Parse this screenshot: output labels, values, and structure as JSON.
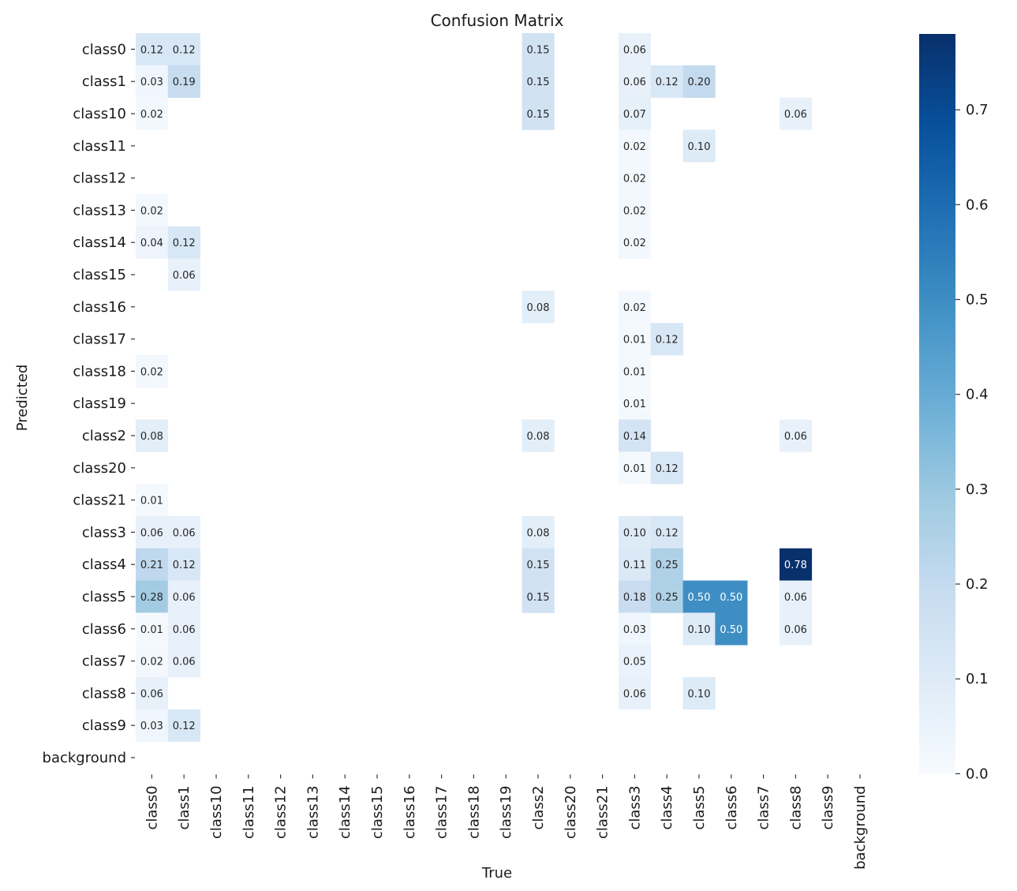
{
  "chart_data": {
    "type": "heatmap",
    "title": "Confusion Matrix",
    "xlabel": "True",
    "ylabel": "Predicted",
    "x_categories": [
      "class0",
      "class1",
      "class10",
      "class11",
      "class12",
      "class13",
      "class14",
      "class15",
      "class16",
      "class17",
      "class18",
      "class19",
      "class2",
      "class20",
      "class21",
      "class3",
      "class4",
      "class5",
      "class6",
      "class7",
      "class8",
      "class9",
      "background"
    ],
    "y_categories": [
      "class0",
      "class1",
      "class10",
      "class11",
      "class12",
      "class13",
      "class14",
      "class15",
      "class16",
      "class17",
      "class18",
      "class19",
      "class2",
      "class20",
      "class21",
      "class3",
      "class4",
      "class5",
      "class6",
      "class7",
      "class8",
      "class9",
      "background"
    ],
    "cells": [
      {
        "y": "class0",
        "x": "class0",
        "v": 0.12
      },
      {
        "y": "class0",
        "x": "class1",
        "v": 0.12
      },
      {
        "y": "class0",
        "x": "class2",
        "v": 0.15
      },
      {
        "y": "class0",
        "x": "class3",
        "v": 0.06
      },
      {
        "y": "class1",
        "x": "class0",
        "v": 0.03
      },
      {
        "y": "class1",
        "x": "class1",
        "v": 0.19
      },
      {
        "y": "class1",
        "x": "class2",
        "v": 0.15
      },
      {
        "y": "class1",
        "x": "class3",
        "v": 0.06
      },
      {
        "y": "class1",
        "x": "class4",
        "v": 0.12
      },
      {
        "y": "class1",
        "x": "class5",
        "v": 0.2
      },
      {
        "y": "class10",
        "x": "class0",
        "v": 0.02
      },
      {
        "y": "class10",
        "x": "class2",
        "v": 0.15
      },
      {
        "y": "class10",
        "x": "class3",
        "v": 0.07
      },
      {
        "y": "class10",
        "x": "class8",
        "v": 0.06
      },
      {
        "y": "class11",
        "x": "class3",
        "v": 0.02
      },
      {
        "y": "class11",
        "x": "class5",
        "v": 0.1
      },
      {
        "y": "class12",
        "x": "class3",
        "v": 0.02
      },
      {
        "y": "class13",
        "x": "class0",
        "v": 0.02
      },
      {
        "y": "class13",
        "x": "class3",
        "v": 0.02
      },
      {
        "y": "class14",
        "x": "class0",
        "v": 0.04
      },
      {
        "y": "class14",
        "x": "class1",
        "v": 0.12
      },
      {
        "y": "class14",
        "x": "class3",
        "v": 0.02
      },
      {
        "y": "class15",
        "x": "class1",
        "v": 0.06
      },
      {
        "y": "class16",
        "x": "class2",
        "v": 0.08
      },
      {
        "y": "class16",
        "x": "class3",
        "v": 0.02
      },
      {
        "y": "class17",
        "x": "class3",
        "v": 0.01
      },
      {
        "y": "class17",
        "x": "class4",
        "v": 0.12
      },
      {
        "y": "class18",
        "x": "class0",
        "v": 0.02
      },
      {
        "y": "class18",
        "x": "class3",
        "v": 0.01
      },
      {
        "y": "class19",
        "x": "class3",
        "v": 0.01
      },
      {
        "y": "class2",
        "x": "class0",
        "v": 0.08
      },
      {
        "y": "class2",
        "x": "class2",
        "v": 0.08
      },
      {
        "y": "class2",
        "x": "class3",
        "v": 0.14
      },
      {
        "y": "class2",
        "x": "class8",
        "v": 0.06
      },
      {
        "y": "class20",
        "x": "class3",
        "v": 0.01
      },
      {
        "y": "class20",
        "x": "class4",
        "v": 0.12
      },
      {
        "y": "class21",
        "x": "class0",
        "v": 0.01
      },
      {
        "y": "class3",
        "x": "class0",
        "v": 0.06
      },
      {
        "y": "class3",
        "x": "class1",
        "v": 0.06
      },
      {
        "y": "class3",
        "x": "class2",
        "v": 0.08
      },
      {
        "y": "class3",
        "x": "class3",
        "v": 0.1
      },
      {
        "y": "class3",
        "x": "class4",
        "v": 0.12
      },
      {
        "y": "class4",
        "x": "class0",
        "v": 0.21
      },
      {
        "y": "class4",
        "x": "class1",
        "v": 0.12
      },
      {
        "y": "class4",
        "x": "class2",
        "v": 0.15
      },
      {
        "y": "class4",
        "x": "class3",
        "v": 0.11
      },
      {
        "y": "class4",
        "x": "class4",
        "v": 0.25
      },
      {
        "y": "class4",
        "x": "class8",
        "v": 0.78
      },
      {
        "y": "class5",
        "x": "class0",
        "v": 0.28
      },
      {
        "y": "class5",
        "x": "class1",
        "v": 0.06
      },
      {
        "y": "class5",
        "x": "class2",
        "v": 0.15
      },
      {
        "y": "class5",
        "x": "class3",
        "v": 0.18
      },
      {
        "y": "class5",
        "x": "class4",
        "v": 0.25
      },
      {
        "y": "class5",
        "x": "class5",
        "v": 0.5
      },
      {
        "y": "class5",
        "x": "class6",
        "v": 0.5
      },
      {
        "y": "class5",
        "x": "class8",
        "v": 0.06
      },
      {
        "y": "class6",
        "x": "class0",
        "v": 0.01
      },
      {
        "y": "class6",
        "x": "class1",
        "v": 0.06
      },
      {
        "y": "class6",
        "x": "class3",
        "v": 0.03
      },
      {
        "y": "class6",
        "x": "class5",
        "v": 0.1
      },
      {
        "y": "class6",
        "x": "class6",
        "v": 0.5
      },
      {
        "y": "class6",
        "x": "class8",
        "v": 0.06
      },
      {
        "y": "class7",
        "x": "class0",
        "v": 0.02
      },
      {
        "y": "class7",
        "x": "class1",
        "v": 0.06
      },
      {
        "y": "class7",
        "x": "class3",
        "v": 0.05
      },
      {
        "y": "class8",
        "x": "class0",
        "v": 0.06
      },
      {
        "y": "class8",
        "x": "class3",
        "v": 0.06
      },
      {
        "y": "class8",
        "x": "class5",
        "v": 0.1
      },
      {
        "y": "class9",
        "x": "class0",
        "v": 0.03
      },
      {
        "y": "class9",
        "x": "class1",
        "v": 0.12
      }
    ],
    "value_format": "0.00",
    "colorbar": {
      "min": 0.0,
      "max": 0.78,
      "ticks": [
        0.0,
        0.1,
        0.2,
        0.3,
        0.4,
        0.5,
        0.6,
        0.7
      ],
      "tick_labels": [
        "0.0",
        "0.1",
        "0.2",
        "0.3",
        "0.4",
        "0.5",
        "0.6",
        "0.7"
      ],
      "colormap": "Blues",
      "low_color": "#f7fbff",
      "high_color": "#08306b"
    },
    "grid": false
  }
}
